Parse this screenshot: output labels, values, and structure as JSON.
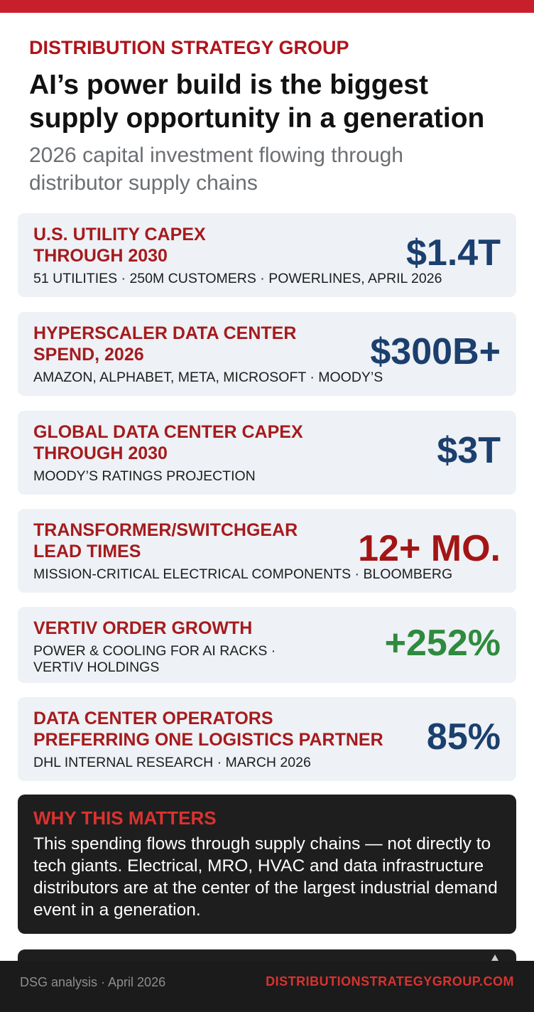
{
  "header": {
    "brand": "DISTRIBUTION STRATEGY GROUP",
    "title": "AI’s power build is the biggest supply opportunity in a generation",
    "subtitle": "2026 capital investment flowing through distributor supply chains"
  },
  "cards": [
    {
      "label": [
        "U.S. UTILITY CAPEX",
        "THROUGH 2030"
      ],
      "source": [
        "51 UTILITIES · 250M CUSTOMERS · POWERLINES, APRIL 2026"
      ],
      "value": "$1.4T",
      "color": "#1b3f6e"
    },
    {
      "label": [
        "HYPERSCALER DATA CENTER",
        "SPEND, 2026"
      ],
      "source": [
        "AMAZON, ALPHABET, META, MICROSOFT · MOODY’S"
      ],
      "value": "$300B+",
      "color": "#1b3f6e"
    },
    {
      "label": [
        "GLOBAL DATA CENTER CAPEX",
        "THROUGH 2030"
      ],
      "source": [
        "MOODY’S RATINGS PROJECTION"
      ],
      "value": "$3T",
      "color": "#1b3f6e"
    },
    {
      "label": [
        "TRANSFORMER/SWITCHGEAR",
        "LEAD TIMES"
      ],
      "source": [
        "MISSION-CRITICAL ELECTRICAL COMPONENTS · BLOOMBERG"
      ],
      "value": "12+ MO.",
      "color": "#a31515"
    },
    {
      "label": [
        "VERTIV ORDER GROWTH"
      ],
      "source": [
        "POWER & COOLING FOR AI RACKS ·",
        "VERTIV HOLDINGS"
      ],
      "value": "+252%",
      "color": "#2e8b3e"
    },
    {
      "label": [
        "DATA CENTER OPERATORS",
        "PREFERRING ONE LOGISTICS PARTNER"
      ],
      "source": [
        "DHL INTERNAL RESEARCH · MARCH 2026"
      ],
      "value": "85%",
      "color": "#1b3f6e"
    }
  ],
  "why": {
    "title": "WHY THIS MATTERS",
    "body": "This spending flows through supply chains — not directly to tech giants. Electrical, MRO, HVAC and data infrastructure distributors are at the center of the largest industrial demand event in a generation."
  },
  "footer": {
    "note": "DSG analysis · April 2026",
    "site": "DISTRIBUTIONSTRATEGYGROUP.COM"
  }
}
